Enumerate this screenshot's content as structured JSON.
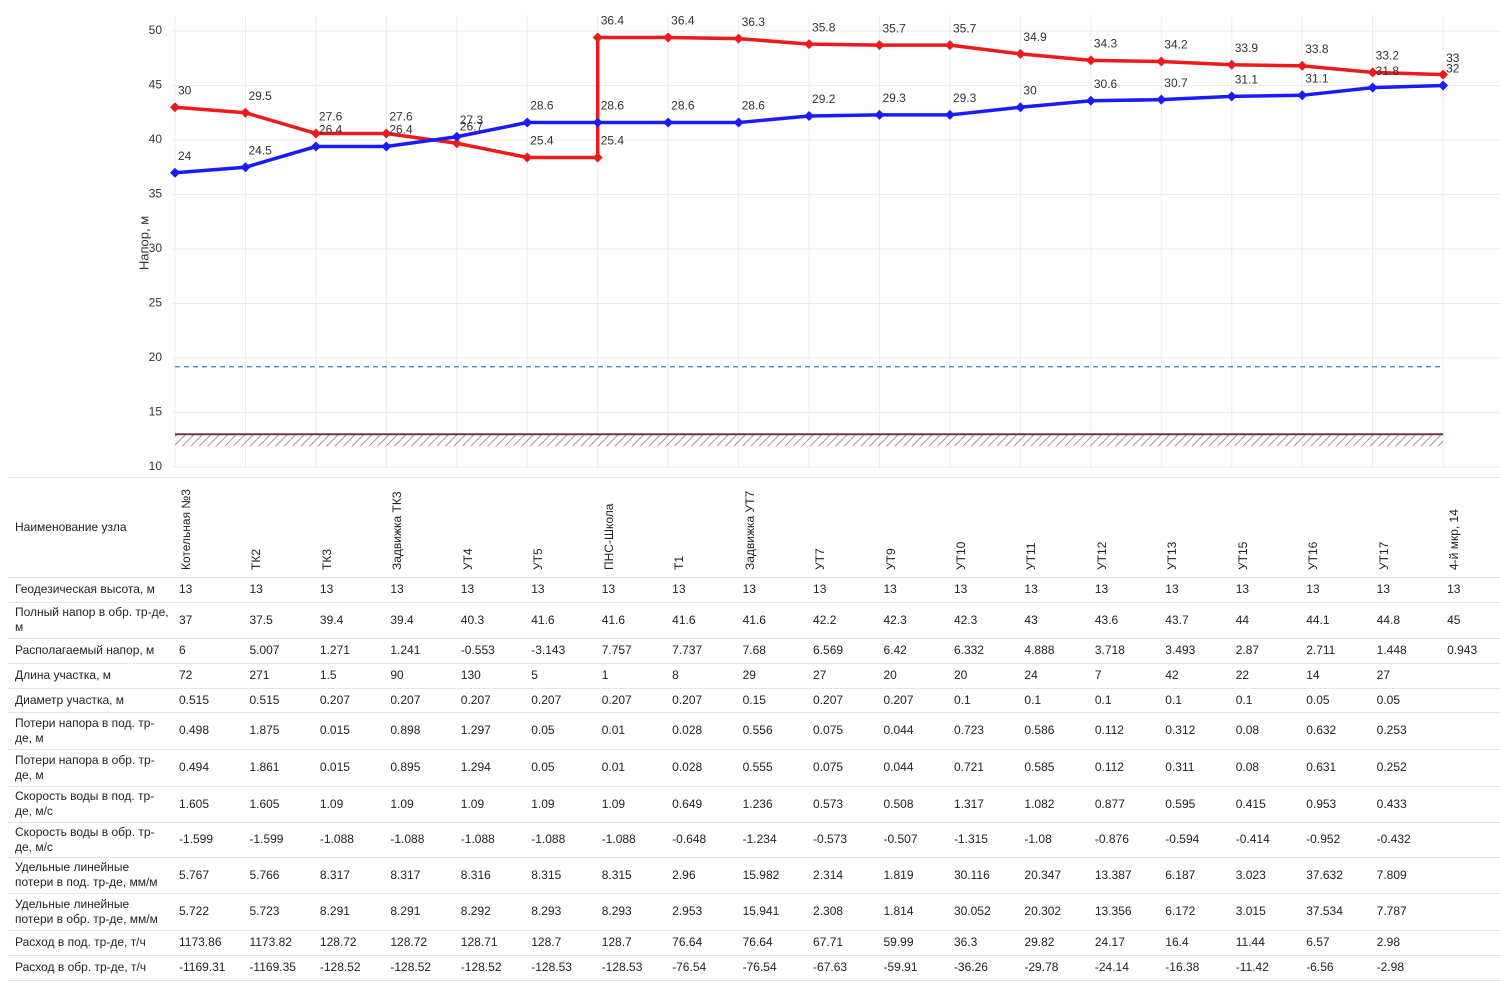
{
  "chart_data": {
    "type": "line",
    "y_label": "Напор, м",
    "ylim": [
      10,
      50
    ],
    "yticks": [
      10,
      15,
      20,
      25,
      30,
      35,
      40,
      45,
      50
    ],
    "grid": true,
    "categories": [
      "Котельная №3",
      "ТК2",
      "ТК3",
      "Задвижка ТК3",
      "УТ4",
      "УТ5",
      "ПНС-Школа",
      "Т1",
      "Задвижка УТ7",
      "УТ7",
      "УТ9",
      "УТ10",
      "УТ11",
      "УТ12",
      "УТ13",
      "УТ15",
      "УТ16",
      "УТ17",
      "4-й мкр, 14"
    ],
    "series": [
      {
        "color": "#f01818",
        "x": [
          "Котельная №3",
          "ТК2",
          "ТК3",
          "Задвижка ТК3",
          "УТ4",
          "УТ5",
          "ПНС-Школа",
          "ПНС-Школа",
          "Т1",
          "Задвижка УТ7",
          "УТ7",
          "УТ9",
          "УТ10",
          "УТ11",
          "УТ12",
          "УТ13",
          "УТ15",
          "УТ16",
          "УТ17",
          "4-й мкр, 14"
        ],
        "values": [
          43,
          42.5,
          40.6,
          40.6,
          39.7,
          38.4,
          38.4,
          49.4,
          49.4,
          49.3,
          48.8,
          48.7,
          48.7,
          47.9,
          47.3,
          47.2,
          46.9,
          46.8,
          46.2,
          46
        ],
        "annotations": [
          "30",
          "29.5",
          "27.6",
          "27.6",
          "26.7",
          "25.4",
          "25.4",
          "36.4",
          "36.4",
          "36.3",
          "35.8",
          "35.7",
          "35.7",
          "34.9",
          "34.3",
          "34.2",
          "33.9",
          "33.8",
          "33.2",
          "33"
        ]
      },
      {
        "color": "#1a1aff",
        "values": [
          37,
          37.5,
          39.4,
          39.4,
          40.3,
          41.6,
          41.6,
          41.6,
          41.6,
          42.2,
          42.3,
          42.3,
          43,
          43.6,
          43.7,
          44,
          44.1,
          44.8,
          45
        ],
        "annotations": [
          "24",
          "24.5",
          "26.4",
          "26.4",
          "27.3",
          "28.6",
          "28.6",
          "28.6",
          "28.6",
          "29.2",
          "29.3",
          "29.3",
          "30",
          "30.6",
          "30.7",
          "31.1",
          "31.1",
          "31.8",
          "32"
        ]
      }
    ],
    "reference_lines": [
      {
        "value": 19.2,
        "color": "#3a7fc1",
        "dashed": true
      }
    ]
  },
  "table": {
    "header": "Наименование узла",
    "rows": [
      {
        "label": "Геодезическая высота, м",
        "values": [
          13,
          13,
          13,
          13,
          13,
          13,
          13,
          13,
          13,
          13,
          13,
          13,
          13,
          13,
          13,
          13,
          13,
          13,
          13
        ]
      },
      {
        "label": "Полный напор в обр. тр-де, м",
        "values": [
          37,
          37.5,
          39.4,
          39.4,
          40.3,
          41.6,
          41.6,
          41.6,
          41.6,
          42.2,
          42.3,
          42.3,
          43,
          43.6,
          43.7,
          44,
          44.1,
          44.8,
          45
        ]
      },
      {
        "label": "Располагаемый напор, м",
        "values": [
          6,
          5.007,
          1.271,
          1.241,
          -0.553,
          -3.143,
          7.757,
          7.737,
          7.68,
          6.569,
          6.42,
          6.332,
          4.888,
          3.718,
          3.493,
          2.87,
          2.711,
          1.448,
          0.943
        ]
      },
      {
        "label": "Длина участка, м",
        "values": [
          72,
          271,
          1.5,
          90,
          130,
          5,
          1,
          8,
          29,
          27,
          20,
          20,
          24,
          7,
          42,
          22,
          14,
          27
        ]
      },
      {
        "label": "Диаметр участка, м",
        "values": [
          0.515,
          0.515,
          0.207,
          0.207,
          0.207,
          0.207,
          0.207,
          0.207,
          0.15,
          0.207,
          0.207,
          0.1,
          0.1,
          0.1,
          0.1,
          0.1,
          0.05,
          0.05
        ]
      },
      {
        "label": "Потери напора в под. тр-де, м",
        "values": [
          0.498,
          1.875,
          0.015,
          0.898,
          1.297,
          0.05,
          0.01,
          0.028,
          0.556,
          0.075,
          0.044,
          0.723,
          0.586,
          0.112,
          0.312,
          0.08,
          0.632,
          0.253
        ]
      },
      {
        "label": "Потери напора в обр. тр-де, м",
        "values": [
          0.494,
          1.861,
          0.015,
          0.895,
          1.294,
          0.05,
          0.01,
          0.028,
          0.555,
          0.075,
          0.044,
          0.721,
          0.585,
          0.112,
          0.311,
          0.08,
          0.631,
          0.252
        ]
      },
      {
        "label": "Скорость воды в под. тр-де, м/с",
        "values": [
          1.605,
          1.605,
          1.09,
          1.09,
          1.09,
          1.09,
          1.09,
          0.649,
          1.236,
          0.573,
          0.508,
          1.317,
          1.082,
          0.877,
          0.595,
          0.415,
          0.953,
          0.433
        ]
      },
      {
        "label": "Скорость воды в обр. тр-де, м/с",
        "values": [
          -1.599,
          -1.599,
          -1.088,
          -1.088,
          -1.088,
          -1.088,
          -1.088,
          -0.648,
          -1.234,
          -0.573,
          -0.507,
          -1.315,
          -1.08,
          -0.876,
          -0.594,
          -0.414,
          -0.952,
          -0.432
        ]
      },
      {
        "label": "Удельные линейные потери в под. тр-де, мм/м",
        "values": [
          5.767,
          5.766,
          8.317,
          8.317,
          8.316,
          8.315,
          8.315,
          2.96,
          15.982,
          2.314,
          1.819,
          30.116,
          20.347,
          13.387,
          6.187,
          3.023,
          37.632,
          7.809
        ]
      },
      {
        "label": "Удельные линейные потери в обр. тр-де, мм/м",
        "values": [
          5.722,
          5.723,
          8.291,
          8.291,
          8.292,
          8.293,
          8.293,
          2.953,
          15.941,
          2.308,
          1.814,
          30.052,
          20.302,
          13.356,
          6.172,
          3.015,
          37.534,
          7.787
        ]
      },
      {
        "label": "Расход в под. тр-де, т/ч",
        "values": [
          1173.86,
          1173.82,
          128.72,
          128.72,
          128.71,
          128.7,
          128.7,
          76.64,
          76.64,
          67.71,
          59.99,
          36.3,
          29.82,
          24.17,
          16.4,
          11.44,
          6.57,
          2.98
        ]
      },
      {
        "label": "Расход в обр. тр-де, т/ч",
        "values": [
          -1169.31,
          -1169.35,
          -128.52,
          -128.52,
          -128.52,
          -128.53,
          -128.53,
          -76.54,
          -76.54,
          -67.63,
          -59.91,
          -36.26,
          -29.78,
          -24.14,
          -16.38,
          -11.42,
          -6.56,
          -2.98
        ]
      }
    ]
  }
}
